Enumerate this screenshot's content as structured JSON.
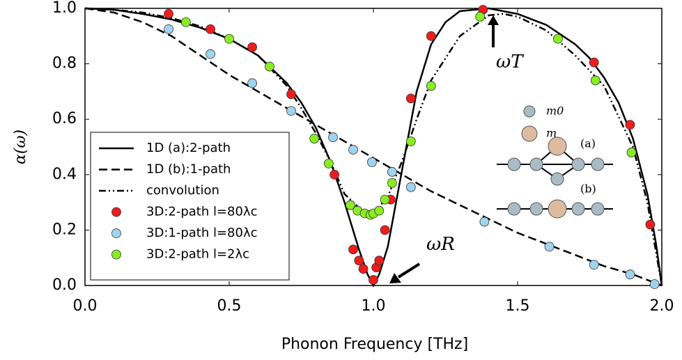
{
  "chart_data": {
    "type": "line",
    "xlabel": "Phonon Frequency [THz]",
    "ylabel": "α(ω)",
    "xlim": [
      0,
      2
    ],
    "ylim": [
      0,
      1
    ],
    "xticks": [
      {
        "value": 0,
        "label": "0.0"
      },
      {
        "value": 0.5,
        "label": "0.5"
      },
      {
        "value": 1,
        "label": "1.0"
      },
      {
        "value": 1.5,
        "label": "1.5"
      },
      {
        "value": 2,
        "label": "2.0"
      }
    ],
    "yticks": [
      {
        "value": 0,
        "label": "0.0"
      },
      {
        "value": 0.2,
        "label": "0.2"
      },
      {
        "value": 0.4,
        "label": "0.4"
      },
      {
        "value": 0.6,
        "label": "0.6"
      },
      {
        "value": 0.8,
        "label": "0.8"
      },
      {
        "value": 1,
        "label": "1.0"
      }
    ],
    "annotations": [
      "ωT",
      "ωR",
      "m0",
      "m",
      "(a)",
      "(b)"
    ],
    "series": [
      {
        "name": "1D (a):2-path",
        "type": "line",
        "style": "solid",
        "color": "#000000",
        "x": [
          0,
          0.1,
          0.2,
          0.3,
          0.4,
          0.5,
          0.6,
          0.7,
          0.75,
          0.8,
          0.85,
          0.9,
          0.95,
          0.98,
          1.0,
          1.02,
          1.05,
          1.1,
          1.15,
          1.2,
          1.25,
          1.3,
          1.4,
          1.5,
          1.6,
          1.7,
          1.75,
          1.8,
          1.85,
          1.9,
          1.95,
          1.98,
          2.0
        ],
        "values": [
          1.0,
          0.995,
          0.98,
          0.96,
          0.93,
          0.89,
          0.83,
          0.73,
          0.66,
          0.57,
          0.45,
          0.3,
          0.13,
          0.04,
          0.0,
          0.04,
          0.14,
          0.42,
          0.7,
          0.87,
          0.95,
          0.99,
          1.0,
          0.98,
          0.94,
          0.87,
          0.82,
          0.75,
          0.66,
          0.53,
          0.33,
          0.15,
          0
        ]
      },
      {
        "name": "1D (b):1-path",
        "type": "line",
        "style": "dashed",
        "color": "#000000",
        "x": [
          0,
          0.1,
          0.2,
          0.3,
          0.4,
          0.5,
          0.6,
          0.7,
          0.8,
          0.9,
          1.0,
          1.1,
          1.2,
          1.3,
          1.4,
          1.5,
          1.6,
          1.7,
          1.8,
          1.9,
          2.0
        ],
        "values": [
          1.0,
          0.985,
          0.95,
          0.9,
          0.83,
          0.76,
          0.7,
          0.64,
          0.58,
          0.52,
          0.46,
          0.4,
          0.34,
          0.29,
          0.24,
          0.19,
          0.15,
          0.11,
          0.07,
          0.04,
          0
        ]
      },
      {
        "name": "convolution",
        "type": "line",
        "style": "dashdot",
        "color": "#000000",
        "x": [
          0,
          0.1,
          0.2,
          0.3,
          0.4,
          0.5,
          0.6,
          0.7,
          0.75,
          0.8,
          0.85,
          0.9,
          0.95,
          1.0,
          1.05,
          1.1,
          1.15,
          1.2,
          1.3,
          1.4,
          1.45,
          1.5,
          1.6,
          1.7,
          1.8,
          1.9,
          1.95,
          2.0
        ],
        "values": [
          1.0,
          0.995,
          0.985,
          0.965,
          0.935,
          0.89,
          0.83,
          0.72,
          0.64,
          0.55,
          0.45,
          0.33,
          0.28,
          0.26,
          0.32,
          0.45,
          0.6,
          0.74,
          0.9,
          0.975,
          0.98,
          0.97,
          0.92,
          0.83,
          0.72,
          0.5,
          0.3,
          0
        ]
      },
      {
        "name": "3D:2-path l=80λc",
        "type": "scatter",
        "color": "#ee1c1c",
        "x": [
          0.29,
          0.435,
          0.58,
          0.715,
          0.865,
          0.93,
          0.95,
          0.965,
          1.0,
          1.01,
          1.02,
          1.04,
          1.06,
          1.13,
          1.2,
          1.38,
          1.765,
          1.89,
          1.96
        ],
        "values": [
          0.98,
          0.925,
          0.86,
          0.69,
          0.4,
          0.13,
          0.09,
          0.06,
          0.02,
          0.065,
          0.09,
          0.2,
          0.31,
          0.675,
          0.9,
          0.995,
          0.805,
          0.58,
          0.22
        ]
      },
      {
        "name": "3D:1-path l=80λc",
        "type": "scatter",
        "color": "#9fd4ef",
        "x": [
          0.29,
          0.435,
          0.58,
          0.715,
          0.86,
          0.93,
          0.995,
          1.065,
          1.13,
          1.385,
          1.61,
          1.765,
          1.89,
          1.975
        ],
        "values": [
          0.925,
          0.835,
          0.73,
          0.63,
          0.535,
          0.49,
          0.445,
          0.41,
          0.355,
          0.23,
          0.14,
          0.075,
          0.04,
          0.005
        ]
      },
      {
        "name": "3D:2-path l=2λc",
        "type": "scatter",
        "color": "#88ee22",
        "x": [
          0.35,
          0.5,
          0.64,
          0.795,
          0.845,
          0.92,
          0.945,
          0.97,
          0.99,
          1.0,
          1.02,
          1.04,
          1.065,
          1.13,
          1.2,
          1.37,
          1.64,
          1.77,
          1.895
        ],
        "values": [
          0.95,
          0.89,
          0.79,
          0.53,
          0.44,
          0.29,
          0.27,
          0.26,
          0.255,
          0.26,
          0.27,
          0.31,
          0.37,
          0.52,
          0.72,
          0.97,
          0.89,
          0.74,
          0.48
        ]
      }
    ]
  }
}
